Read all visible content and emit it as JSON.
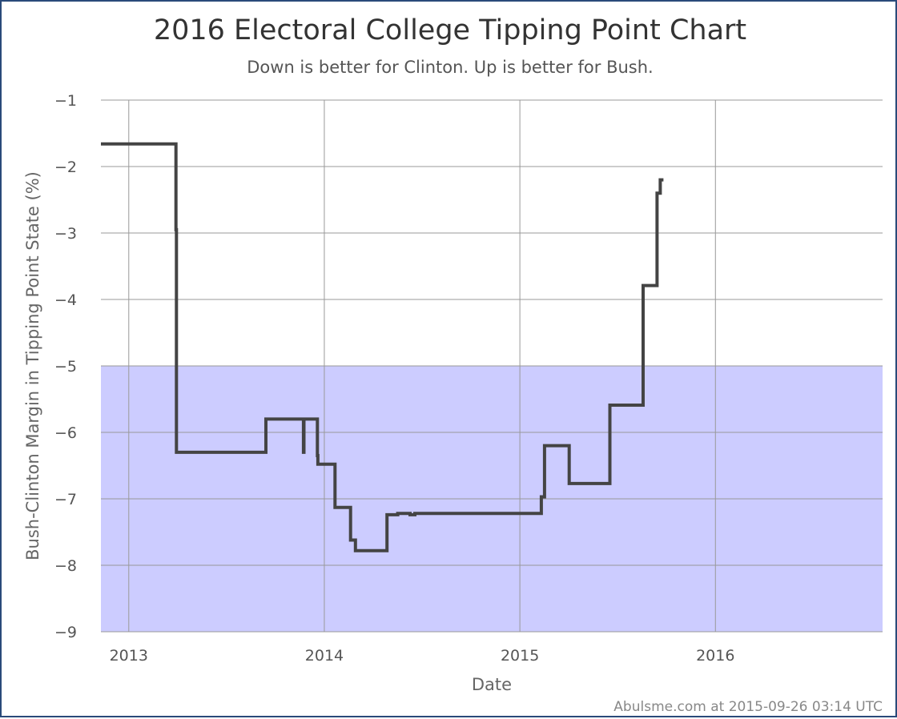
{
  "chart_data": {
    "type": "line",
    "title": "2016 Electoral College Tipping Point Chart",
    "subtitle": "Down is better for Clinton. Up is better for Bush.",
    "xlabel": "Date",
    "ylabel": "Bush-Clinton Margin in Tipping Point State (%)",
    "credit": "Abulsme.com at 2015-09-26 03:14 UTC",
    "xlim": [
      "2012-11-10",
      "2016-11-08"
    ],
    "ylim": [
      -9,
      -1
    ],
    "x_ticks": [
      {
        "date": "2013-01-01",
        "label": "2013"
      },
      {
        "date": "2014-01-01",
        "label": "2014"
      },
      {
        "date": "2015-01-01",
        "label": "2015"
      },
      {
        "date": "2016-01-01",
        "label": "2016"
      }
    ],
    "y_ticks": [
      -1,
      -2,
      -3,
      -4,
      -5,
      -6,
      -7,
      -8,
      -9
    ],
    "grid": true,
    "shaded_region": {
      "y_from": -9,
      "y_to": -5,
      "color": "#ccccff"
    },
    "line_color": "#444444",
    "series": [
      {
        "step": true,
        "points": [
          {
            "x": "2012-11-10",
            "y": -1.66
          },
          {
            "x": "2013-03-30",
            "y": -2.95
          },
          {
            "x": "2013-03-31",
            "y": -6.3
          },
          {
            "x": "2013-09-14",
            "y": -5.8
          },
          {
            "x": "2013-11-23",
            "y": -6.3
          },
          {
            "x": "2013-11-24",
            "y": -5.8
          },
          {
            "x": "2013-12-19",
            "y": -6.35
          },
          {
            "x": "2013-12-20",
            "y": -6.48
          },
          {
            "x": "2014-01-21",
            "y": -7.13
          },
          {
            "x": "2014-02-19",
            "y": -7.62
          },
          {
            "x": "2014-02-28",
            "y": -7.78
          },
          {
            "x": "2014-04-28",
            "y": -7.24
          },
          {
            "x": "2014-05-18",
            "y": -7.22
          },
          {
            "x": "2014-06-10",
            "y": -7.24
          },
          {
            "x": "2014-06-19",
            "y": -7.22
          },
          {
            "x": "2015-02-10",
            "y": -6.97
          },
          {
            "x": "2015-02-16",
            "y": -6.2
          },
          {
            "x": "2015-04-03",
            "y": -6.77
          },
          {
            "x": "2015-06-18",
            "y": -5.59
          },
          {
            "x": "2015-08-19",
            "y": -3.79
          },
          {
            "x": "2015-09-14",
            "y": -2.4
          },
          {
            "x": "2015-09-20",
            "y": -2.2
          },
          {
            "x": "2015-09-26",
            "y": -2.2
          }
        ]
      }
    ]
  }
}
